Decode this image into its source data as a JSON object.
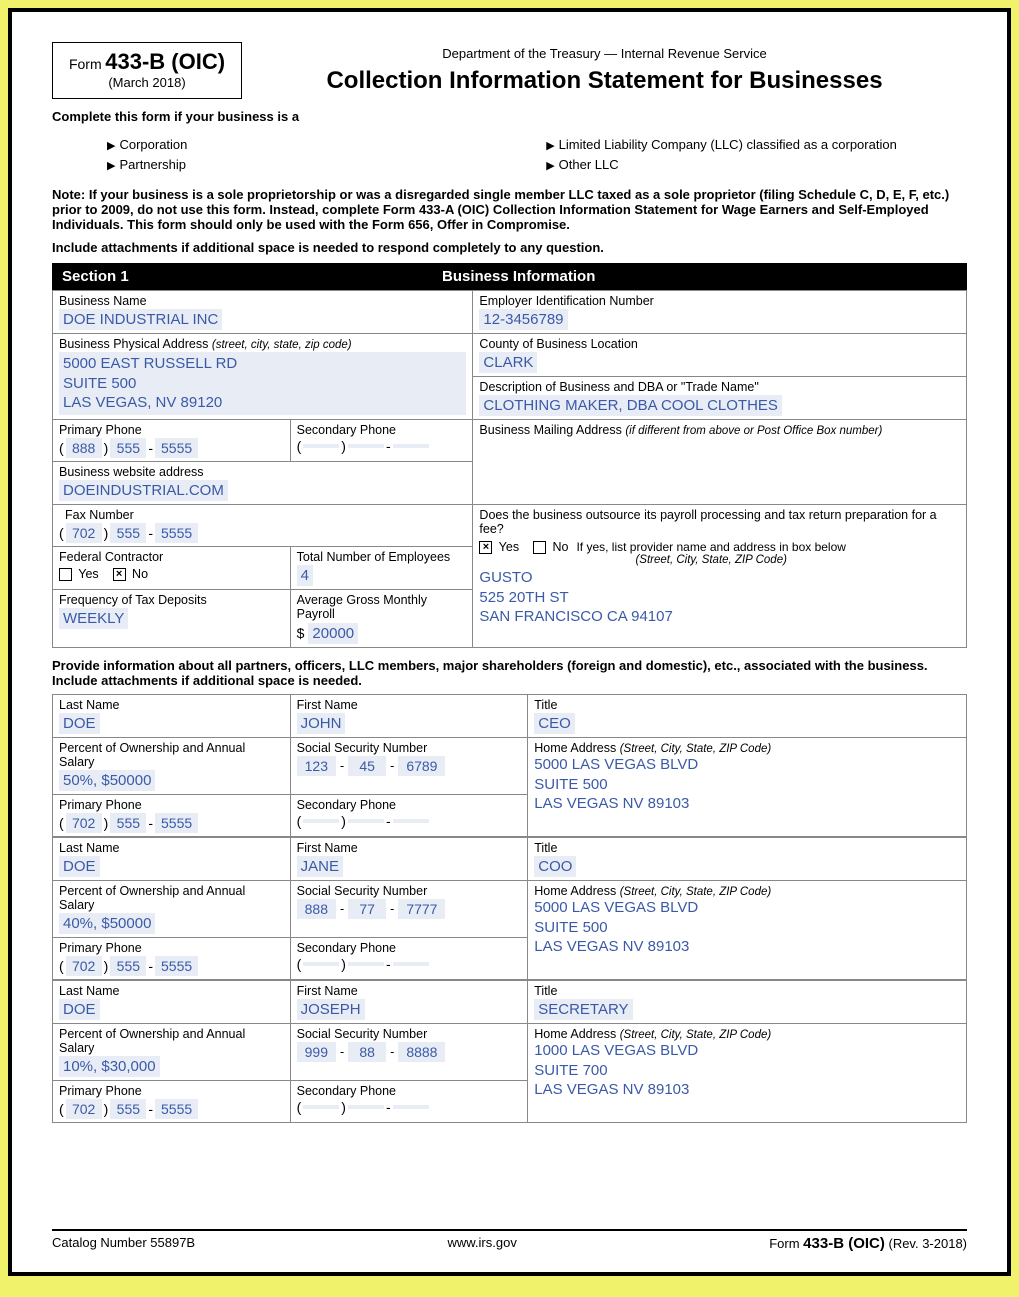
{
  "header": {
    "form_label": "Form",
    "form_number": "433-B (OIC)",
    "form_date": "(March 2018)",
    "department": "Department of the Treasury — Internal Revenue Service",
    "title": "Collection Information Statement for Businesses"
  },
  "complete_text": "Complete this form if your business is a",
  "biz_types": {
    "a": "Corporation",
    "b": "Partnership",
    "c": "Limited Liability Company (LLC) classified as a corporation",
    "d": "Other LLC"
  },
  "note": "Note: If your business is a sole proprietorship or was a disregarded single member LLC taxed as a sole proprietor (filing Schedule C, D, E, F, etc.) prior to 2009, do not use this form. Instead, complete Form 433-A (OIC) Collection Information Statement for Wage Earners and Self-Employed Individuals. This form should only be used with the Form 656, Offer in Compromise.",
  "attach_note": "Include attachments if additional space is needed to respond completely to any question.",
  "section1": {
    "num": "Section 1",
    "title": "Business Information"
  },
  "labels": {
    "biz_name": "Business Name",
    "ein": "Employer Identification Number",
    "addr": "Business Physical Address",
    "addr_hint": "(street, city, state, zip code)",
    "county": "County of Business Location",
    "desc": "Description of Business and DBA or \"Trade Name\"",
    "pri_phone": "Primary Phone",
    "sec_phone": "Secondary Phone",
    "mail_addr": "Business Mailing Address",
    "mail_hint": "(if different from above or Post Office Box number)",
    "website": "Business website address",
    "fax": "Fax Number",
    "outsource": "Does the business outsource its payroll processing and tax return preparation for a fee?",
    "fed_contractor": "Federal Contractor",
    "tot_emp": "Total Number of Employees",
    "yes": "Yes",
    "no": "No",
    "provider_hint1": "If yes, list provider name and address in box below",
    "provider_hint2": "(Street, City, State, ZIP Code)",
    "freq_tax": "Frequency of Tax Deposits",
    "avg_payroll": "Average Gross Monthly Payroll",
    "last_name": "Last Name",
    "first_name": "First Name",
    "title": "Title",
    "pct_own": "Percent of Ownership and Annual Salary",
    "ssn": "Social Security Number",
    "home_addr": "Home Address",
    "home_hint": "(Street, City, State, ZIP Code)"
  },
  "biz": {
    "name": "DOE INDUSTRIAL INC",
    "ein": "12-3456789",
    "addr1": "5000  EAST RUSSELL RD",
    "addr2": "SUITE 500",
    "addr3": "LAS VEGAS, NV 89120",
    "county": "CLARK",
    "desc": "CLOTHING MAKER, DBA COOL CLOTHES",
    "pri_phone": {
      "area": "888",
      "pre": "555",
      "num": "5555"
    },
    "sec_phone": {
      "area": "",
      "pre": "",
      "num": ""
    },
    "website": "DOEINDUSTRIAL.COM",
    "fax": {
      "area": "702",
      "pre": "555",
      "num": "5555"
    },
    "fed_yes": "",
    "fed_no": "×",
    "employees": "4",
    "out_yes": "×",
    "out_no": "",
    "provider1": "GUSTO",
    "provider2": "525 20TH ST",
    "provider3": "SAN FRANCISCO CA 94107",
    "freq": "WEEKLY",
    "payroll": "20000"
  },
  "partners_note": "Provide information about all partners, officers, LLC members, major shareholders (foreign and domestic), etc., associated with the business. Include attachments if additional space is needed.",
  "people": [
    {
      "last": "DOE",
      "first": "JOHN",
      "title": "CEO",
      "pct": "50%, $50000",
      "ssn": {
        "a": "123",
        "b": "45",
        "c": "6789"
      },
      "addr1": "5000 LAS VEGAS BLVD",
      "addr2": "SUITE 500",
      "addr3": "LAS VEGAS NV 89103",
      "pri": {
        "area": "702",
        "pre": "555",
        "num": "5555"
      },
      "sec": {
        "area": "",
        "pre": "",
        "num": ""
      }
    },
    {
      "last": "DOE",
      "first": "JANE",
      "title": "COO",
      "pct": "40%, $50000",
      "ssn": {
        "a": "888",
        "b": "77",
        "c": "7777"
      },
      "addr1": "5000 LAS VEGAS BLVD",
      "addr2": "SUITE 500",
      "addr3": "LAS VEGAS NV 89103",
      "pri": {
        "area": "702",
        "pre": "555",
        "num": "5555"
      },
      "sec": {
        "area": "",
        "pre": "",
        "num": ""
      }
    },
    {
      "last": "DOE",
      "first": "JOSEPH",
      "title": "SECRETARY",
      "pct": "10%, $30,000",
      "ssn": {
        "a": "999",
        "b": "88",
        "c": "8888"
      },
      "addr1": "1000 LAS VEGAS BLVD",
      "addr2": "SUITE 700",
      "addr3": "LAS VEGAS NV 89103",
      "pri": {
        "area": "702",
        "pre": "555",
        "num": "5555"
      },
      "sec": {
        "area": "",
        "pre": "",
        "num": ""
      }
    }
  ],
  "footer": {
    "catalog": "Catalog Number 55897B",
    "url": "www.irs.gov",
    "form_label": "Form",
    "form_num": "433-B (OIC)",
    "rev": "(Rev. 3-2018)"
  }
}
